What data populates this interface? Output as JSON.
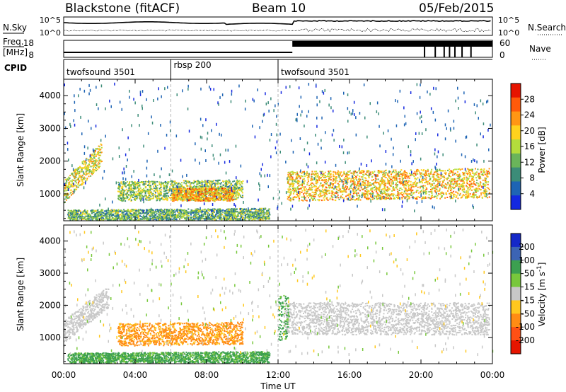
{
  "header": {
    "radar_title": "Blackstone (fitACF)",
    "beam": "Beam 10",
    "date": "05/Feb/2015"
  },
  "top_panels": {
    "nsky_label": "N.Sky",
    "nsky_ticks": [
      "10^5",
      "10^0"
    ],
    "nsearch_label": "N.Search",
    "nsearch_ticks": [
      "10^5",
      "10^0"
    ],
    "freq_label": "Freq.",
    "freq_unit": "[MHz]",
    "freq_ticks": [
      "18",
      "8"
    ],
    "nave_label": "Nave",
    "nave_ticks": [
      "60",
      "0"
    ],
    "cpid_label": "CPID",
    "cpid_segments": [
      {
        "name": "twofsound 3501",
        "start": 0.0,
        "end": 6.0
      },
      {
        "name": "rbsp 200",
        "start": 6.0,
        "end": 12.0
      },
      {
        "name": "twofsound 3501",
        "start": 12.0,
        "end": 24.0
      }
    ]
  },
  "chart_data": [
    {
      "type": "heatmap",
      "title": "",
      "xlabel": "",
      "ylabel": "Slant Range [km]",
      "xlim": [
        0,
        24
      ],
      "ylim": [
        180,
        4500
      ],
      "x_ticks": [
        0,
        4,
        8,
        12,
        16,
        20,
        24
      ],
      "y_ticks": [
        1000,
        2000,
        3000,
        4000
      ],
      "colorbar": {
        "label": "Power [dB]",
        "ticks": [
          "4",
          "8",
          "12",
          "16",
          "20",
          "24",
          "28"
        ],
        "colors": [
          "#1428e0",
          "#1e64b4",
          "#3c8c78",
          "#6ab45a",
          "#b4dc3c",
          "#ffd21e",
          "#ff9614",
          "#ff5a0a",
          "#e61400"
        ]
      },
      "echo_regions": [
        {
          "x": [
            0.0,
            2.1
          ],
          "y_center": [
            1100,
            2250
          ],
          "thickness": 350,
          "value": 18,
          "description": "rising band"
        },
        {
          "x": [
            3.0,
            10.0
          ],
          "y_center": [
            1100,
            1150
          ],
          "thickness": 300,
          "value": 14
        },
        {
          "x": [
            6.0,
            9.5
          ],
          "y_center": [
            1000,
            1000
          ],
          "thickness": 200,
          "value": 22
        },
        {
          "x": [
            12.5,
            23.8
          ],
          "y_center": [
            1250,
            1350
          ],
          "thickness": 450,
          "value": 20
        },
        {
          "x": [
            0.2,
            11.5
          ],
          "y_center": [
            350,
            400
          ],
          "thickness": 180,
          "value": 12
        }
      ]
    },
    {
      "type": "heatmap",
      "title": "",
      "xlabel": "Time UT",
      "ylabel": "Slant Range [km]",
      "xlim": [
        0,
        24
      ],
      "ylim": [
        180,
        4500
      ],
      "x_ticks": [
        0,
        4,
        8,
        12,
        16,
        20,
        24
      ],
      "x_ticklabels": [
        "00:00",
        "04:00",
        "08:00",
        "12:00",
        "16:00",
        "20:00",
        "00:00"
      ],
      "y_ticks": [
        1000,
        2000,
        3000,
        4000
      ],
      "colorbar": {
        "label": "Velocity [m s^-1]",
        "ticks": [
          "200",
          "100",
          "50",
          "15",
          "-15",
          "-50",
          "-100",
          "-200"
        ],
        "colors": [
          "#1428c8",
          "#3c64b4",
          "#3ca050",
          "#78c83c",
          "#c8c8c8",
          "#ffc81e",
          "#ff8c14",
          "#ff5014",
          "#e61400"
        ]
      },
      "echo_regions": [
        {
          "x": [
            0.0,
            2.5
          ],
          "y_center": [
            1200,
            2300
          ],
          "thickness": 350,
          "value": 0
        },
        {
          "x": [
            3.0,
            10.0
          ],
          "y_center": [
            1100,
            1150
          ],
          "thickness": 350,
          "value": -40
        },
        {
          "x": [
            12.3,
            23.8
          ],
          "y_center": [
            1600,
            1600
          ],
          "thickness": 500,
          "value": 0
        },
        {
          "x": [
            12.0,
            12.6
          ],
          "y_center": [
            1600,
            1700
          ],
          "thickness": 700,
          "value": 40
        },
        {
          "x": [
            0.2,
            11.5
          ],
          "y_center": [
            350,
            400
          ],
          "thickness": 180,
          "value": 40
        }
      ]
    }
  ]
}
